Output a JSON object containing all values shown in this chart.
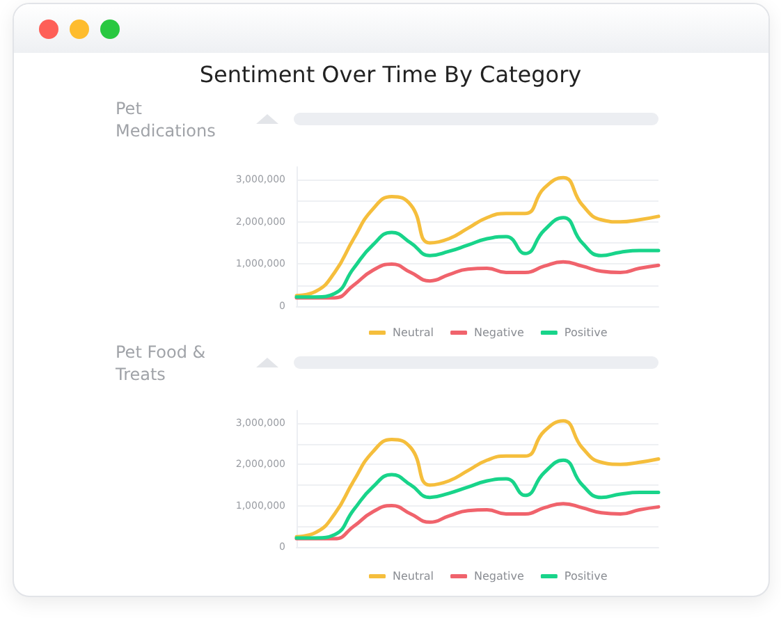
{
  "chart_data": [
    {
      "type": "line",
      "title": "Sentiment Over Time By Category",
      "subtitle": "Pet Medications",
      "categories": [
        null,
        null,
        null,
        null,
        null,
        null,
        null,
        null,
        null,
        null,
        null,
        null,
        null,
        null,
        null,
        null,
        null,
        null,
        null,
        null
      ],
      "series": [
        {
          "name": "Neutral",
          "color": "#f5be3c",
          "values": [
            250000,
            350000,
            800000,
            1600000,
            2300000,
            2600000,
            2400000,
            1500000,
            1600000,
            1850000,
            2100000,
            2200000,
            2200000,
            2800000,
            3050000,
            2400000,
            2050000,
            2000000,
            2050000,
            2130000
          ]
        },
        {
          "name": "Negative",
          "color": "#f0636c",
          "values": [
            200000,
            200000,
            200000,
            500000,
            850000,
            1000000,
            800000,
            600000,
            750000,
            880000,
            900000,
            800000,
            800000,
            950000,
            1050000,
            950000,
            830000,
            800000,
            900000,
            970000
          ]
        },
        {
          "name": "Positive",
          "color": "#18d48a",
          "values": [
            220000,
            220000,
            300000,
            900000,
            1450000,
            1750000,
            1500000,
            1200000,
            1300000,
            1450000,
            1600000,
            1650000,
            1250000,
            1800000,
            2100000,
            1500000,
            1200000,
            1280000,
            1320000,
            1320000
          ]
        }
      ],
      "ylim": [
        0,
        3300000
      ],
      "yticks": [
        0,
        {
          "value": 500000,
          "label": null
        },
        {
          "value": 1000000,
          "label": "1,000,000"
        },
        {
          "value": 1500000,
          "label": null
        },
        {
          "value": 2000000,
          "label": "2,000,000"
        },
        {
          "value": 2500000,
          "label": null
        },
        {
          "value": 3000000,
          "label": "3,000,000"
        }
      ],
      "grid": "y",
      "legend": "bottom",
      "tick_labels": "y",
      "marker": "none",
      "line_style": "solid"
    },
    {
      "type": "line",
      "title": "Pet Food & Treats",
      "categories": [
        null,
        null,
        null,
        null,
        null,
        null,
        null,
        null,
        null,
        null,
        null,
        null,
        null,
        null,
        null,
        null,
        null,
        null,
        null,
        null
      ],
      "series": [
        {
          "name": "Neutral",
          "color": "#f5be3c",
          "values": [
            250000,
            350000,
            800000,
            1600000,
            2300000,
            2600000,
            2400000,
            1500000,
            1600000,
            1850000,
            2100000,
            2200000,
            2200000,
            2800000,
            3050000,
            2400000,
            2050000,
            2000000,
            2050000,
            2130000
          ]
        },
        {
          "name": "Negative",
          "color": "#f0636c",
          "values": [
            200000,
            200000,
            200000,
            500000,
            850000,
            1000000,
            800000,
            600000,
            750000,
            880000,
            900000,
            800000,
            800000,
            950000,
            1050000,
            950000,
            830000,
            800000,
            900000,
            970000
          ]
        },
        {
          "name": "Positive",
          "color": "#18d48a",
          "values": [
            220000,
            220000,
            300000,
            900000,
            1450000,
            1750000,
            1500000,
            1200000,
            1300000,
            1450000,
            1600000,
            1650000,
            1250000,
            1800000,
            2100000,
            1500000,
            1200000,
            1280000,
            1320000,
            1320000
          ]
        }
      ],
      "ylim": [
        0,
        3300000
      ],
      "yticks": [
        0,
        {
          "value": 500000,
          "label": null
        },
        {
          "value": 1000000,
          "label": "1,000,000"
        },
        {
          "value": 1500000,
          "label": null
        },
        {
          "value": 2000000,
          "label": "2,000,000"
        },
        {
          "value": 2500000,
          "label": null
        },
        {
          "value": 3000000,
          "label": "3,000,000"
        }
      ],
      "grid": "y",
      "legend": "bottom",
      "tick_labels": "y",
      "marker": "none",
      "line_style": "solid"
    }
  ]
}
